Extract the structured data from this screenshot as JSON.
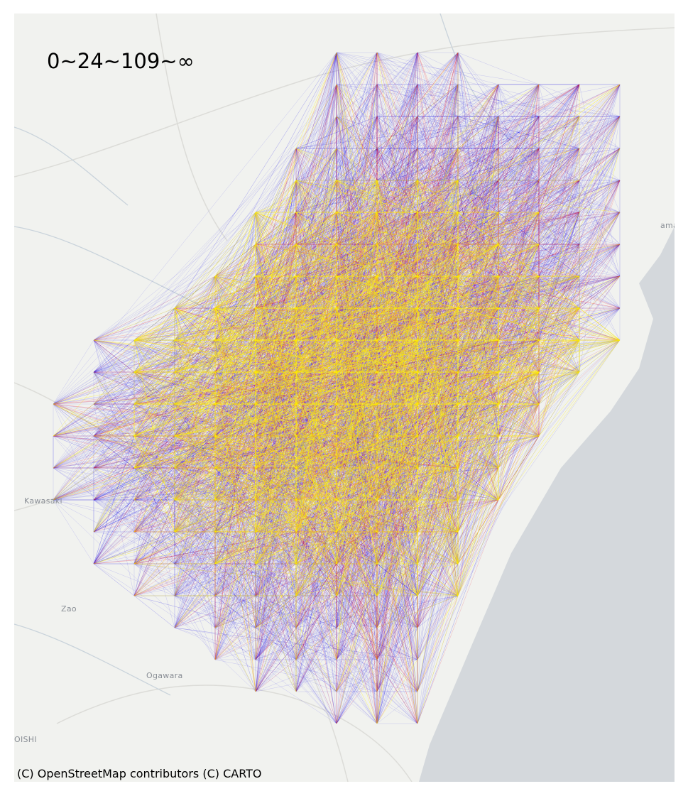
{
  "map": {
    "legend_title": "0~24~109~∞",
    "attribution": "(C) OpenStreetMap contributors (C) CARTO",
    "place_labels": {
      "kawasaki": "Kawasaki",
      "zao": "Zao",
      "ogawara": "Ogawara",
      "shiroishi": "OISHI",
      "natori": "ama"
    },
    "colors": {
      "land": "#f1f2ef",
      "water": "#d4d8dc",
      "low_flow": "#1a10e8",
      "mid_flow": "#e8102a",
      "high_flow": "#ffee00"
    },
    "flow_breaks": [
      0,
      24,
      109,
      "∞"
    ]
  }
}
